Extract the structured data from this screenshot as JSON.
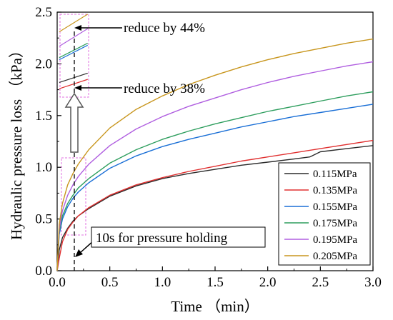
{
  "chart_data": {
    "type": "line",
    "xlabel": "Time （min）",
    "ylabel": "Hydraulic pressure loss （kPa）",
    "xlim": [
      0,
      3.0
    ],
    "ylim": [
      0,
      2.5
    ],
    "xticks": [
      "0.0",
      "0.5",
      "1.0",
      "1.5",
      "2.0",
      "2.5",
      "3.0"
    ],
    "yticks": [
      "0.0",
      "0.5",
      "1.0",
      "1.5",
      "2.0",
      "2.5"
    ],
    "legend_position": "bottom-right",
    "series": [
      {
        "name": "0.115MPa",
        "color": "#2b2b2b",
        "x": [
          0.0,
          0.02,
          0.05,
          0.1,
          0.15,
          0.2,
          0.3,
          0.5,
          0.75,
          1.0,
          1.25,
          1.5,
          1.75,
          2.0,
          2.25,
          2.4,
          2.5,
          2.75,
          3.0
        ],
        "y": [
          0.0,
          0.2,
          0.32,
          0.41,
          0.48,
          0.53,
          0.6,
          0.72,
          0.82,
          0.89,
          0.94,
          0.98,
          1.02,
          1.05,
          1.08,
          1.1,
          1.15,
          1.18,
          1.21
        ]
      },
      {
        "name": "0.135MPa",
        "color": "#e03030",
        "x": [
          0.0,
          0.02,
          0.05,
          0.1,
          0.15,
          0.2,
          0.3,
          0.5,
          0.75,
          1.0,
          1.25,
          1.5,
          1.75,
          2.0,
          2.25,
          2.5,
          2.75,
          3.0
        ],
        "y": [
          0.0,
          0.12,
          0.28,
          0.4,
          0.47,
          0.53,
          0.61,
          0.73,
          0.83,
          0.9,
          0.96,
          1.01,
          1.06,
          1.1,
          1.14,
          1.18,
          1.22,
          1.26
        ]
      },
      {
        "name": "0.155MPa",
        "color": "#1a6fd6",
        "x": [
          0.0,
          0.02,
          0.05,
          0.1,
          0.15,
          0.2,
          0.3,
          0.5,
          0.75,
          1.0,
          1.25,
          1.5,
          1.75,
          2.0,
          2.25,
          2.5,
          2.75,
          3.0
        ],
        "y": [
          0.0,
          0.35,
          0.5,
          0.62,
          0.7,
          0.76,
          0.85,
          0.99,
          1.11,
          1.2,
          1.27,
          1.33,
          1.39,
          1.44,
          1.49,
          1.53,
          1.57,
          1.61
        ]
      },
      {
        "name": "0.175MPa",
        "color": "#2e9e5e",
        "x": [
          0.0,
          0.02,
          0.05,
          0.1,
          0.15,
          0.2,
          0.3,
          0.5,
          0.75,
          1.0,
          1.25,
          1.5,
          1.75,
          2.0,
          2.25,
          2.5,
          2.75,
          3.0
        ],
        "y": [
          0.0,
          0.38,
          0.53,
          0.65,
          0.73,
          0.8,
          0.89,
          1.04,
          1.17,
          1.27,
          1.35,
          1.42,
          1.48,
          1.54,
          1.59,
          1.64,
          1.69,
          1.73
        ]
      },
      {
        "name": "0.195MPa",
        "color": "#b05fe0",
        "x": [
          0.0,
          0.02,
          0.05,
          0.1,
          0.15,
          0.2,
          0.3,
          0.5,
          0.75,
          1.0,
          1.25,
          1.5,
          1.75,
          2.0,
          2.25,
          2.5,
          2.75,
          3.0
        ],
        "y": [
          0.0,
          0.4,
          0.58,
          0.73,
          0.83,
          0.91,
          1.03,
          1.21,
          1.37,
          1.49,
          1.59,
          1.67,
          1.75,
          1.82,
          1.88,
          1.93,
          1.98,
          2.02
        ]
      },
      {
        "name": "0.205MPa",
        "color": "#c8961e",
        "x": [
          0.0,
          0.02,
          0.05,
          0.1,
          0.15,
          0.2,
          0.3,
          0.5,
          0.75,
          1.0,
          1.25,
          1.5,
          1.75,
          2.0,
          2.25,
          2.5,
          2.75,
          3.0
        ],
        "y": [
          0.0,
          0.45,
          0.65,
          0.83,
          0.94,
          1.03,
          1.17,
          1.38,
          1.56,
          1.69,
          1.8,
          1.89,
          1.97,
          2.04,
          2.1,
          2.15,
          2.2,
          2.24
        ]
      }
    ],
    "inset": {
      "series_offsets": [
        {
          "name": "0.115MPa",
          "y": [
            1.82,
            1.91
          ]
        },
        {
          "name": "0.135MPa",
          "y": [
            1.76,
            1.85
          ]
        },
        {
          "name": "0.155MPa",
          "y": [
            2.04,
            2.18
          ]
        },
        {
          "name": "0.175MPa",
          "y": [
            2.06,
            2.2
          ]
        },
        {
          "name": "0.195MPa",
          "y": [
            2.17,
            2.34
          ]
        },
        {
          "name": "0.205MPa",
          "y": [
            2.31,
            2.48
          ]
        }
      ],
      "x": [
        0.02,
        0.29
      ]
    },
    "annotations": [
      {
        "text": "reduce by 44%"
      },
      {
        "text": "reduce by 38%"
      },
      {
        "text": "10s for pressure holding"
      }
    ]
  }
}
